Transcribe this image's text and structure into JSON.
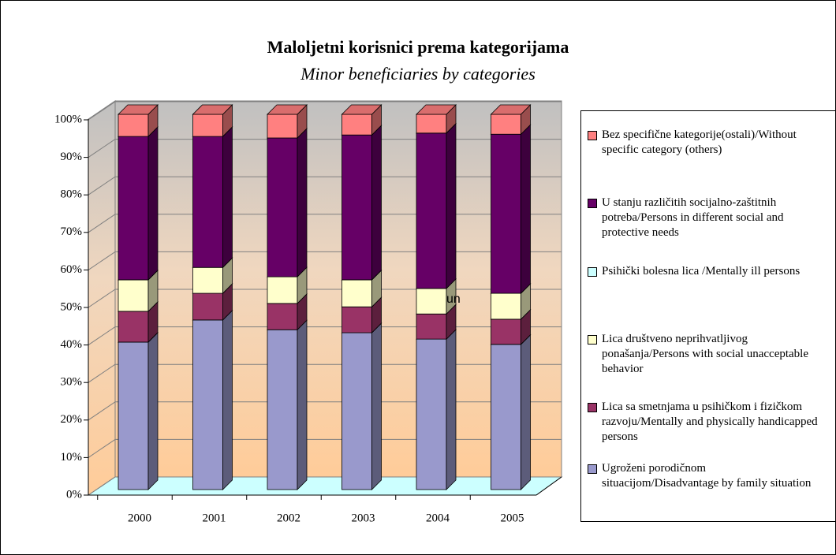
{
  "chart_data": {
    "type": "bar3d_stacked",
    "title": "Maloljetni korisnici prema kategorijama",
    "subtitle": "Minor beneficiaries by categories",
    "annotation": "un",
    "categories": [
      "2000",
      "2001",
      "2002",
      "2003",
      "2004",
      "2005"
    ],
    "series": [
      {
        "name": "Ugroženi porodičnom situacijom/Disadvantage by family situation",
        "color": "#9999cc",
        "values": [
          39.3,
          45.2,
          42.6,
          41.8,
          40.1,
          38.7
        ]
      },
      {
        "name": "Lica sa smetnjama u psihičkom i fizičkom razvoju/Mentally and physically handicapped persons",
        "color": "#993366",
        "values": [
          8.2,
          7.1,
          7.0,
          6.9,
          6.7,
          6.7
        ]
      },
      {
        "name": "Lica društveno neprihvatljivog ponašanja/Persons with social unacceptable behavior",
        "color": "#ffffcc",
        "values": [
          8.4,
          6.9,
          7.1,
          7.2,
          6.8,
          6.9
        ]
      },
      {
        "name": "Psihički bolesna lica /Mentally ill persons",
        "color": "#ccffff",
        "values": [
          0,
          0,
          0,
          0,
          0,
          0
        ]
      },
      {
        "name": "U stanju različitih socijalno-zaštitnih potreba/Persons in different social and protective needs",
        "color": "#660066",
        "values": [
          38.2,
          34.9,
          37.0,
          38.6,
          41.4,
          42.4
        ]
      },
      {
        "name": "Bez specifične kategorije(ostali)/Without specific category (others)",
        "color": "#ff8080",
        "values": [
          5.9,
          5.9,
          6.3,
          5.5,
          5.0,
          5.3
        ]
      }
    ],
    "ylim": [
      0,
      100
    ],
    "yticks": [
      {
        "value": 0,
        "label": "0%"
      },
      {
        "value": 10,
        "label": "10%"
      },
      {
        "value": 20,
        "label": "20%"
      },
      {
        "value": 30,
        "label": "30%"
      },
      {
        "value": 40,
        "label": "40%"
      },
      {
        "value": 50,
        "label": "50%"
      },
      {
        "value": 60,
        "label": "60%"
      },
      {
        "value": 70,
        "label": "70%"
      },
      {
        "value": 80,
        "label": "80%"
      },
      {
        "value": 90,
        "label": "90%"
      },
      {
        "value": 100,
        "label": "100%"
      }
    ],
    "grid": true
  }
}
